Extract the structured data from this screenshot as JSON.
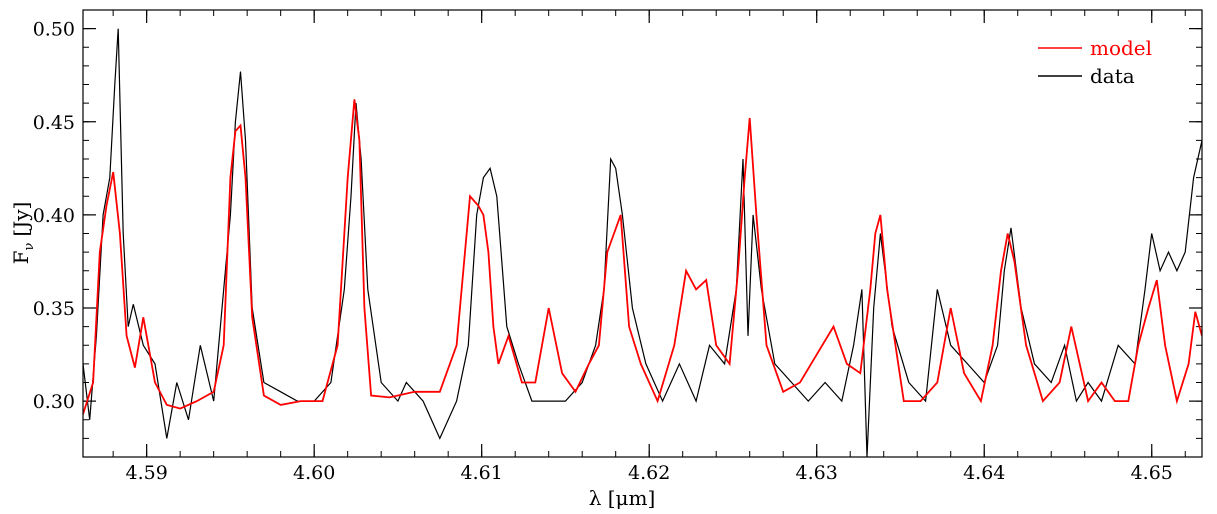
{
  "chart_data": {
    "type": "line",
    "title": "",
    "xlabel": "λ [μm]",
    "ylabel_main": "F",
    "ylabel_sub": "ν",
    "ylabel_unit": "[Jy]",
    "xlim": [
      4.5862,
      4.653
    ],
    "ylim": [
      0.27,
      0.51
    ],
    "x_ticks": [
      4.59,
      4.6,
      4.61,
      4.62,
      4.63,
      4.64,
      4.65
    ],
    "x_tick_labels": [
      "4.59",
      "4.60",
      "4.61",
      "4.62",
      "4.63",
      "4.64",
      "4.65"
    ],
    "y_ticks": [
      0.3,
      0.35,
      0.4,
      0.45,
      0.5
    ],
    "y_tick_labels": [
      "0.30",
      "0.35",
      "0.40",
      "0.45",
      "0.50"
    ],
    "x_minor_step": 0.002,
    "y_minor_step": 0.01,
    "grid": false,
    "legend_position": "top-right",
    "series": [
      {
        "name": "model",
        "color": "#ff0000",
        "x": [
          4.5862,
          4.5868,
          4.5872,
          4.5876,
          4.588,
          4.5884,
          4.5888,
          4.5893,
          4.5898,
          4.5905,
          4.5912,
          4.592,
          4.593,
          4.594,
          4.5946,
          4.595,
          4.5953,
          4.5956,
          4.5959,
          4.5963,
          4.597,
          4.598,
          4.5992,
          4.6005,
          4.6014,
          4.602,
          4.6024,
          4.6027,
          4.603,
          4.6034,
          4.6045,
          4.606,
          4.6075,
          4.6085,
          4.6093,
          4.6098,
          4.6101,
          4.6104,
          4.6107,
          4.611,
          4.6116,
          4.6124,
          4.6132,
          4.614,
          4.6148,
          4.6156,
          4.6164,
          4.617,
          4.6175,
          4.6179,
          4.6183,
          4.6188,
          4.6195,
          4.6205,
          4.6215,
          4.6222,
          4.6228,
          4.6234,
          4.624,
          4.6248,
          4.6253,
          4.6257,
          4.626,
          4.6264,
          4.627,
          4.628,
          4.629,
          4.63,
          4.631,
          4.6318,
          4.6326,
          4.6332,
          4.6335,
          4.6338,
          4.6342,
          4.6352,
          4.6362,
          4.6372,
          4.638,
          4.6388,
          4.6398,
          4.6405,
          4.641,
          4.6414,
          4.6418,
          4.6425,
          4.6435,
          4.6445,
          4.6452,
          4.6462,
          4.647,
          4.6478,
          4.6486,
          4.6492,
          4.6498,
          4.6503,
          4.6508,
          4.6515,
          4.6522,
          4.6526,
          4.653
        ],
        "y": [
          0.293,
          0.31,
          0.38,
          0.405,
          0.423,
          0.39,
          0.335,
          0.318,
          0.345,
          0.31,
          0.298,
          0.296,
          0.3,
          0.305,
          0.33,
          0.42,
          0.445,
          0.448,
          0.42,
          0.345,
          0.303,
          0.298,
          0.3,
          0.3,
          0.33,
          0.42,
          0.462,
          0.44,
          0.35,
          0.303,
          0.302,
          0.305,
          0.305,
          0.33,
          0.41,
          0.405,
          0.4,
          0.38,
          0.34,
          0.32,
          0.335,
          0.31,
          0.31,
          0.35,
          0.315,
          0.305,
          0.32,
          0.33,
          0.38,
          0.39,
          0.4,
          0.34,
          0.32,
          0.3,
          0.33,
          0.37,
          0.36,
          0.365,
          0.33,
          0.32,
          0.37,
          0.42,
          0.452,
          0.4,
          0.33,
          0.305,
          0.31,
          0.325,
          0.34,
          0.32,
          0.315,
          0.36,
          0.39,
          0.4,
          0.36,
          0.3,
          0.3,
          0.31,
          0.35,
          0.315,
          0.3,
          0.33,
          0.37,
          0.39,
          0.375,
          0.33,
          0.3,
          0.31,
          0.34,
          0.3,
          0.31,
          0.3,
          0.3,
          0.33,
          0.35,
          0.365,
          0.33,
          0.3,
          0.32,
          0.348,
          0.335
        ]
      },
      {
        "name": "data",
        "color": "#000000",
        "x": [
          4.5862,
          4.5866,
          4.587,
          4.5874,
          4.5878,
          4.5881,
          4.5883,
          4.5886,
          4.5889,
          4.5892,
          4.5898,
          4.5905,
          4.5912,
          4.5918,
          4.5925,
          4.5932,
          4.594,
          4.5946,
          4.595,
          4.5953,
          4.5956,
          4.5959,
          4.5963,
          4.597,
          4.598,
          4.599,
          4.6,
          4.601,
          4.6018,
          4.6022,
          4.6025,
          4.6028,
          4.6032,
          4.604,
          4.605,
          4.6055,
          4.6065,
          4.6075,
          4.6085,
          4.6092,
          4.6097,
          4.6101,
          4.6105,
          4.6109,
          4.6115,
          4.6122,
          4.613,
          4.614,
          4.615,
          4.616,
          4.6168,
          4.6173,
          4.6177,
          4.618,
          4.6184,
          4.619,
          4.6198,
          4.6208,
          4.6218,
          4.6228,
          4.6236,
          4.6245,
          4.6252,
          4.6256,
          4.6259,
          4.6262,
          4.6267,
          4.6275,
          4.6285,
          4.6295,
          4.6305,
          4.6315,
          4.6322,
          4.6327,
          4.633,
          4.6334,
          4.6338,
          4.6345,
          4.6355,
          4.6365,
          4.6372,
          4.638,
          4.639,
          4.64,
          4.6408,
          4.6412,
          4.6416,
          4.6422,
          4.643,
          4.644,
          4.6448,
          4.6455,
          4.6462,
          4.647,
          4.648,
          4.649,
          4.6496,
          4.65,
          4.6505,
          4.651,
          4.6515,
          4.652,
          4.6525,
          4.653
        ],
        "y": [
          0.32,
          0.29,
          0.335,
          0.4,
          0.42,
          0.47,
          0.5,
          0.39,
          0.34,
          0.352,
          0.33,
          0.32,
          0.28,
          0.31,
          0.29,
          0.33,
          0.3,
          0.36,
          0.4,
          0.45,
          0.477,
          0.44,
          0.35,
          0.31,
          0.305,
          0.3,
          0.3,
          0.31,
          0.36,
          0.41,
          0.46,
          0.43,
          0.36,
          0.31,
          0.3,
          0.31,
          0.3,
          0.28,
          0.3,
          0.33,
          0.4,
          0.42,
          0.425,
          0.41,
          0.34,
          0.32,
          0.3,
          0.3,
          0.3,
          0.31,
          0.33,
          0.36,
          0.43,
          0.425,
          0.4,
          0.35,
          0.32,
          0.3,
          0.32,
          0.3,
          0.33,
          0.32,
          0.36,
          0.43,
          0.335,
          0.4,
          0.36,
          0.32,
          0.31,
          0.3,
          0.31,
          0.3,
          0.33,
          0.36,
          0.27,
          0.35,
          0.39,
          0.34,
          0.31,
          0.3,
          0.36,
          0.33,
          0.32,
          0.31,
          0.33,
          0.37,
          0.393,
          0.35,
          0.32,
          0.31,
          0.33,
          0.3,
          0.31,
          0.3,
          0.33,
          0.32,
          0.36,
          0.39,
          0.37,
          0.38,
          0.37,
          0.38,
          0.42,
          0.44
        ]
      }
    ]
  }
}
